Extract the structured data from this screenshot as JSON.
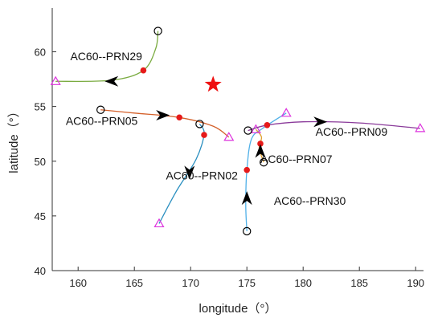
{
  "chart_data": {
    "type": "line",
    "xlabel": "longitude（°）",
    "ylabel": "latitude（°）",
    "xlim": [
      157.7,
      190.7
    ],
    "ylim": [
      40,
      64
    ],
    "xticks": [
      "160",
      "165",
      "170",
      "175",
      "180",
      "185",
      "190"
    ],
    "yticks": [
      "40",
      "45",
      "50",
      "55",
      "60"
    ],
    "grid": false,
    "star": {
      "x": 172,
      "y": 57,
      "color": "#ee1111"
    },
    "legend_markers": {
      "start": "circle",
      "end": "triangle",
      "point": "red-dot"
    },
    "tracks": [
      {
        "label": "AC60--PRN29",
        "color": "#7aab40",
        "label_pos": [
          162.5,
          59.6
        ],
        "points": [
          [
            167.1,
            61.9
          ],
          [
            166.9,
            60.3
          ],
          [
            165.8,
            58.3
          ],
          [
            163.0,
            57.4
          ],
          [
            158.0,
            57.3
          ]
        ],
        "start": [
          167.1,
          61.9
        ],
        "end": [
          158.0,
          57.3
        ],
        "dot": [
          165.8,
          58.3
        ],
        "arrow": {
          "at": [
            163.0,
            57.3
          ],
          "dir": "left"
        }
      },
      {
        "label": "AC60--PRN05",
        "color": "#d4602a",
        "label_pos": [
          162.1,
          53.7
        ],
        "points": [
          [
            162.0,
            54.7
          ],
          [
            165.0,
            54.4
          ],
          [
            169.0,
            54.0
          ],
          [
            172.0,
            53.2
          ],
          [
            173.4,
            52.2
          ]
        ],
        "start": [
          162.0,
          54.7
        ],
        "end": [
          173.4,
          52.2
        ],
        "dot": [
          169.0,
          54.0
        ],
        "arrow": {
          "at": [
            167.5,
            54.2
          ],
          "dir": "right"
        }
      },
      {
        "label": "AC60--PRN02",
        "color": "#2a8fc0",
        "label_pos": [
          171.0,
          48.7
        ],
        "points": [
          [
            170.8,
            53.4
          ],
          [
            171.2,
            52.5
          ],
          [
            170.5,
            50.2
          ],
          [
            168.7,
            47.2
          ],
          [
            167.2,
            44.3
          ]
        ],
        "start": [
          170.8,
          53.4
        ],
        "end": [
          167.2,
          44.3
        ],
        "dot": [
          171.2,
          52.4
        ],
        "arrow": {
          "at": [
            169.9,
            49.0
          ],
          "dir": "down"
        }
      },
      {
        "label": "AC60--PRN30",
        "color": "#4fb0e8",
        "label_pos": [
          180.6,
          46.4
        ],
        "points": [
          [
            175.0,
            43.6
          ],
          [
            174.9,
            46.0
          ],
          [
            175.0,
            49.2
          ],
          [
            175.4,
            52.0
          ],
          [
            176.4,
            53.0
          ],
          [
            178.5,
            54.4
          ]
        ],
        "start": [
          175.0,
          43.6
        ],
        "end": [
          178.5,
          54.4
        ],
        "dot": [
          175.0,
          49.2
        ],
        "arrow": {
          "at": [
            175.0,
            46.6
          ],
          "dir": "up"
        }
      },
      {
        "label": "AC60--PRN07",
        "color": "#e0a030",
        "label_pos": [
          179.4,
          50.2
        ],
        "points": [
          [
            176.5,
            49.9
          ],
          [
            176.1,
            51.2
          ],
          [
            176.3,
            52.2
          ],
          [
            175.8,
            52.9
          ]
        ],
        "start": [
          176.5,
          49.9
        ],
        "end": [
          175.8,
          52.9
        ],
        "dot": [
          176.2,
          51.6
        ],
        "arrow": {
          "at": [
            176.2,
            50.9
          ],
          "dir": "up"
        }
      },
      {
        "label": "AC60--PRN09",
        "color": "#8a3a9a",
        "label_pos": [
          184.3,
          52.7
        ],
        "points": [
          [
            175.1,
            52.8
          ],
          [
            176.8,
            53.3
          ],
          [
            180.0,
            53.6
          ],
          [
            185.0,
            53.5
          ],
          [
            190.4,
            53.0
          ]
        ],
        "start": [
          175.1,
          52.8
        ],
        "end": [
          190.4,
          53.0
        ],
        "dot": [
          176.8,
          53.3
        ],
        "arrow": {
          "at": [
            181.5,
            53.6
          ],
          "dir": "right"
        }
      }
    ]
  }
}
